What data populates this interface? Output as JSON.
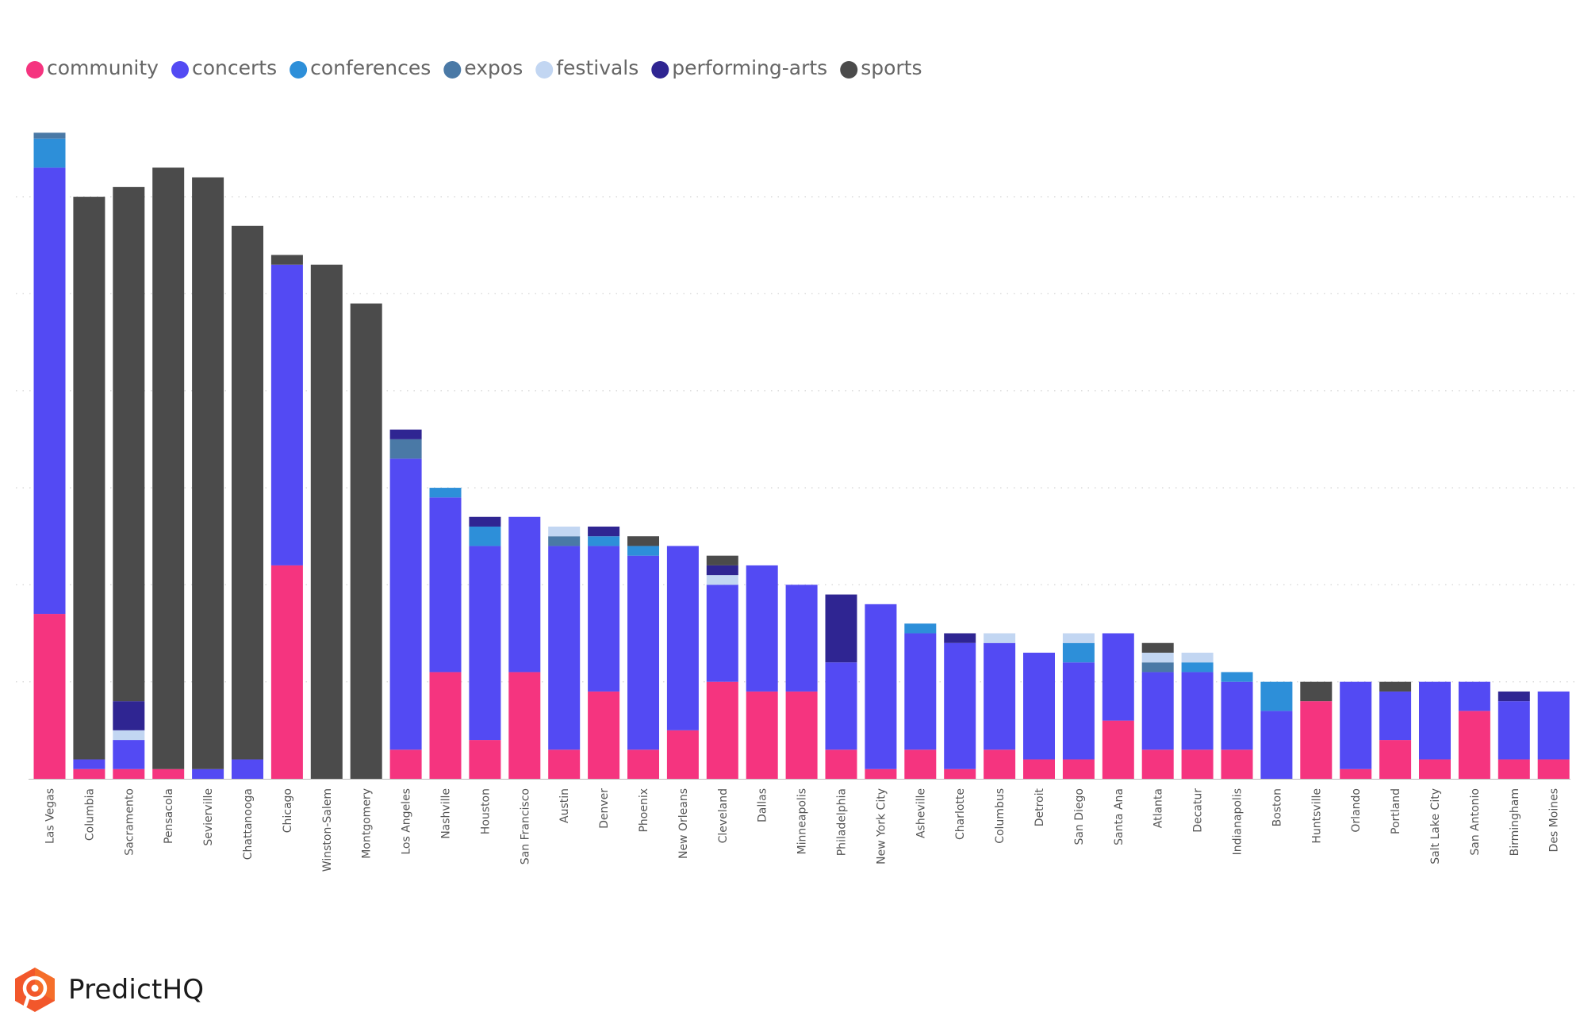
{
  "colors": {
    "community": "#f5347f",
    "concerts": "#534af3",
    "conferences": "#2d8fd9",
    "expos": "#4a79a6",
    "festivals": "#c2d6f2",
    "performing-arts": "#2f2592",
    "sports": "#4b4b4b"
  },
  "brand": {
    "name": "PredictHQ"
  },
  "chart_data": {
    "type": "bar",
    "stacked": true,
    "grid": true,
    "legend_position": "top-left",
    "ylim": [
      0,
      69
    ],
    "categories": [
      "Las Vegas",
      "Columbia",
      "Sacramento",
      "Pensacola",
      "Sevierville",
      "Chattanooga",
      "Chicago",
      "Winston-Salem",
      "Montgomery",
      "Los Angeles",
      "Nashville",
      "Houston",
      "San Francisco",
      "Austin",
      "Denver",
      "Phoenix",
      "New Orleans",
      "Cleveland",
      "Dallas",
      "Minneapolis",
      "Philadelphia",
      "New York City",
      "Asheville",
      "Charlotte",
      "Columbus",
      "Detroit",
      "San Diego",
      "Santa Ana",
      "Atlanta",
      "Decatur",
      "Indianapolis",
      "Boston",
      "Huntsville",
      "Orlando",
      "Portland",
      "Salt Lake City",
      "San Antonio",
      "Birmingham",
      "Des Moines"
    ],
    "series": [
      {
        "name": "community",
        "values": [
          17,
          1,
          1,
          1,
          0,
          0,
          22,
          0,
          0,
          3,
          11,
          4,
          11,
          3,
          9,
          3,
          5,
          10,
          9,
          9,
          3,
          1,
          3,
          1,
          3,
          2,
          2,
          6,
          3,
          3,
          3,
          0,
          8,
          1,
          4,
          2,
          7,
          2,
          2
        ]
      },
      {
        "name": "concerts",
        "values": [
          46,
          1,
          3,
          0,
          1,
          2,
          31,
          0,
          0,
          30,
          18,
          20,
          16,
          21,
          15,
          20,
          19,
          10,
          13,
          11,
          9,
          17,
          12,
          13,
          11,
          11,
          10,
          9,
          8,
          8,
          7,
          7,
          0,
          9,
          5,
          8,
          3,
          6,
          7
        ]
      },
      {
        "name": "conferences",
        "values": [
          3,
          0,
          0,
          0,
          0,
          0,
          0,
          0,
          0,
          0,
          1,
          2,
          0,
          0,
          1,
          1,
          0,
          0,
          0,
          0,
          0,
          0,
          1,
          0,
          0,
          0,
          2,
          0,
          0,
          1,
          1,
          3,
          0,
          0,
          0,
          0,
          0,
          0,
          0
        ]
      },
      {
        "name": "expos",
        "values": [
          0.6,
          0,
          0,
          0,
          0,
          0,
          0,
          0,
          0,
          2,
          0,
          0,
          0,
          1,
          0,
          0,
          0,
          0,
          0,
          0,
          0,
          0,
          0,
          0,
          0,
          0,
          0,
          0,
          1,
          0,
          0,
          0,
          0,
          0,
          0,
          0,
          0,
          0,
          0
        ]
      },
      {
        "name": "festivals",
        "values": [
          0,
          0,
          1,
          0,
          0,
          0,
          0,
          0,
          0,
          0,
          0,
          0,
          0,
          1,
          0,
          0,
          0,
          1,
          0,
          0,
          0,
          0,
          0,
          0,
          1,
          0,
          1,
          0,
          1,
          1,
          0,
          0,
          0,
          0,
          0,
          0,
          0,
          0,
          0
        ]
      },
      {
        "name": "performing-arts",
        "values": [
          0,
          0,
          3,
          0,
          0,
          0,
          0,
          0,
          0,
          1,
          0,
          1,
          0,
          0,
          1,
          0,
          0,
          1,
          0,
          0,
          7,
          0,
          0,
          1,
          0,
          0,
          0,
          0,
          0,
          0,
          0,
          0,
          0,
          0,
          0,
          0,
          0,
          1,
          0
        ]
      },
      {
        "name": "sports",
        "values": [
          0,
          58,
          53,
          62,
          61,
          55,
          1,
          53,
          49,
          0,
          0,
          0,
          0,
          0,
          0,
          1,
          0,
          1,
          0,
          0,
          0,
          0,
          0,
          0,
          0,
          0,
          0,
          0,
          1,
          0,
          0,
          0,
          2,
          0,
          1,
          0,
          0,
          0,
          0
        ]
      }
    ]
  }
}
